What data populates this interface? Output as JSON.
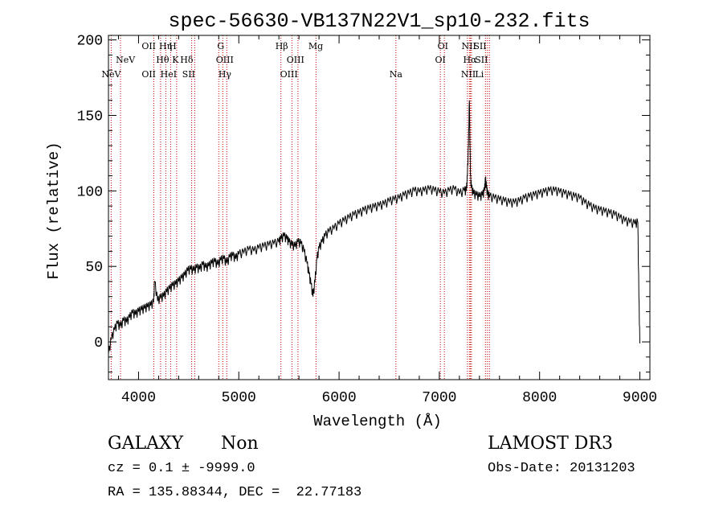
{
  "chart_data": {
    "type": "line",
    "title": "spec-56630-VB137N22V1_sp10-232.fits",
    "xlabel": "Wavelength (Å)",
    "ylabel": "Flux (relative)",
    "xlim": [
      3700,
      9100
    ],
    "ylim": [
      -25,
      203
    ],
    "x_ticks": [
      4000,
      5000,
      6000,
      7000,
      8000,
      9000
    ],
    "y_ticks": [
      0,
      50,
      100,
      150,
      200
    ],
    "grid": false,
    "line_color": "#000000",
    "marker_color": "#cc0000",
    "series": [
      {
        "x": [
          3700,
          3730,
          3760,
          3790,
          3820,
          3850,
          3880,
          3910,
          3940,
          3970,
          4000,
          4030,
          4060,
          4090,
          4120,
          4150,
          4160,
          4190,
          4220,
          4250,
          4280,
          4310,
          4340,
          4370,
          4400,
          4430,
          4460,
          4490,
          4520,
          4550,
          4580,
          4610,
          4640,
          4670,
          4700,
          4730,
          4760,
          4790,
          4820,
          4850,
          4880,
          4910,
          4940,
          4970,
          5000,
          5050,
          5100,
          5150,
          5200,
          5250,
          5300,
          5350,
          5400,
          5420,
          5450,
          5480,
          5500,
          5530,
          5560,
          5590,
          5620,
          5650,
          5680,
          5700,
          5720,
          5740,
          5760,
          5780,
          5800,
          5830,
          5860,
          5900,
          5950,
          6000,
          6050,
          6100,
          6150,
          6200,
          6250,
          6300,
          6350,
          6400,
          6450,
          6500,
          6550,
          6600,
          6650,
          6700,
          6750,
          6800,
          6850,
          6900,
          6950,
          7000,
          7050,
          7100,
          7150,
          7200,
          7250,
          7270,
          7280,
          7290,
          7300,
          7310,
          7320,
          7340,
          7370,
          7400,
          7430,
          7450,
          7460,
          7470,
          7480,
          7500,
          7550,
          7600,
          7650,
          7700,
          7750,
          7800,
          7850,
          7900,
          7950,
          8000,
          8050,
          8100,
          8150,
          8200,
          8250,
          8300,
          8350,
          8400,
          8450,
          8500,
          8550,
          8600,
          8650,
          8700,
          8750,
          8800,
          8850,
          8900,
          8950,
          8980,
          8990,
          9000
        ],
        "y": [
          -8,
          2,
          8,
          12,
          10,
          14,
          13,
          16,
          19,
          18,
          20,
          21,
          22,
          23,
          24,
          26,
          40,
          27,
          29,
          30,
          33,
          35,
          37,
          38,
          40,
          42,
          44,
          47,
          48,
          47,
          49,
          48,
          51,
          49,
          50,
          52,
          53,
          51,
          54,
          55,
          52,
          56,
          57,
          55,
          58,
          59,
          61,
          60,
          62,
          63,
          64,
          65,
          66,
          68,
          70,
          68,
          66,
          64,
          63,
          66,
          65,
          60,
          52,
          45,
          38,
          30,
          40,
          55,
          62,
          66,
          70,
          73,
          75,
          78,
          80,
          82,
          84,
          85,
          87,
          88,
          89,
          90,
          91,
          93,
          94,
          95,
          97,
          98,
          100,
          99,
          100,
          101,
          100,
          99,
          98,
          100,
          101,
          98,
          100,
          100,
          110,
          130,
          160,
          110,
          102,
          98,
          97,
          96,
          97,
          100,
          108,
          102,
          98,
          96,
          95,
          94,
          93,
          92,
          92,
          93,
          95,
          96,
          97,
          98,
          99,
          100,
          100,
          99,
          98,
          97,
          96,
          95,
          92,
          90,
          88,
          87,
          86,
          85,
          84,
          82,
          80,
          79,
          78,
          79,
          30,
          -1
        ]
      }
    ],
    "line_markers": [
      {
        "x": 3727,
        "label": "NeV",
        "row": 2
      },
      {
        "x": 3870,
        "label": "NeV",
        "row": 1
      },
      {
        "x": 4102,
        "label": "OII",
        "row": 0
      },
      {
        "x": 4102,
        "label": "OII",
        "row": 3
      },
      {
        "x": 4270,
        "label": "Hη",
        "row": 0
      },
      {
        "x": 4240,
        "label": "Hθ",
        "row": 1
      },
      {
        "x": 4300,
        "label": "HeI",
        "row": 3
      },
      {
        "x": 4340,
        "label": "H",
        "row": 0
      },
      {
        "x": 4368,
        "label": "K",
        "row": 1
      },
      {
        "x": 4480,
        "label": "Hδ",
        "row": 1
      },
      {
        "x": 4500,
        "label": "SII",
        "row": 3
      },
      {
        "x": 4820,
        "label": "G",
        "row": 0
      },
      {
        "x": 4860,
        "label": "OIII",
        "row": 1
      },
      {
        "x": 4861,
        "label": "Hγ",
        "row": 3
      },
      {
        "x": 5428,
        "label": "Hβ",
        "row": 0
      },
      {
        "x": 5565,
        "label": "OIII",
        "row": 1
      },
      {
        "x": 5500,
        "label": "OIII",
        "row": 3
      },
      {
        "x": 5767,
        "label": "Mg",
        "row": 0
      },
      {
        "x": 6567,
        "label": "Na",
        "row": 3
      },
      {
        "x": 7035,
        "label": "OI",
        "row": 0
      },
      {
        "x": 7010,
        "label": "OI",
        "row": 1
      },
      {
        "x": 7295,
        "label": "NII",
        "row": 0
      },
      {
        "x": 7305,
        "label": "Hα",
        "row": 1
      },
      {
        "x": 7290,
        "label": "NII",
        "row": 3
      },
      {
        "x": 7405,
        "label": "SII",
        "row": 0
      },
      {
        "x": 7420,
        "label": "SII",
        "row": 1
      },
      {
        "x": 7400,
        "label": "Li",
        "row": 3
      }
    ],
    "marker_lines": [
      3727,
      3820,
      4152,
      4220,
      4272,
      4320,
      4380,
      4530,
      4560,
      4800,
      4840,
      4880,
      5420,
      5530,
      5590,
      5770,
      6567,
      7010,
      7050,
      7280,
      7300,
      7310,
      7320,
      7460,
      7480,
      7500
    ]
  },
  "info": {
    "object_class": "GALAXY",
    "subclass": "Non",
    "survey": "LAMOST DR3",
    "redshift": "cz = 0.1 ± -9999.0",
    "obs_date": "Obs-Date: 20131203",
    "coords": "RA = 135.88344, DEC =  22.77183"
  }
}
